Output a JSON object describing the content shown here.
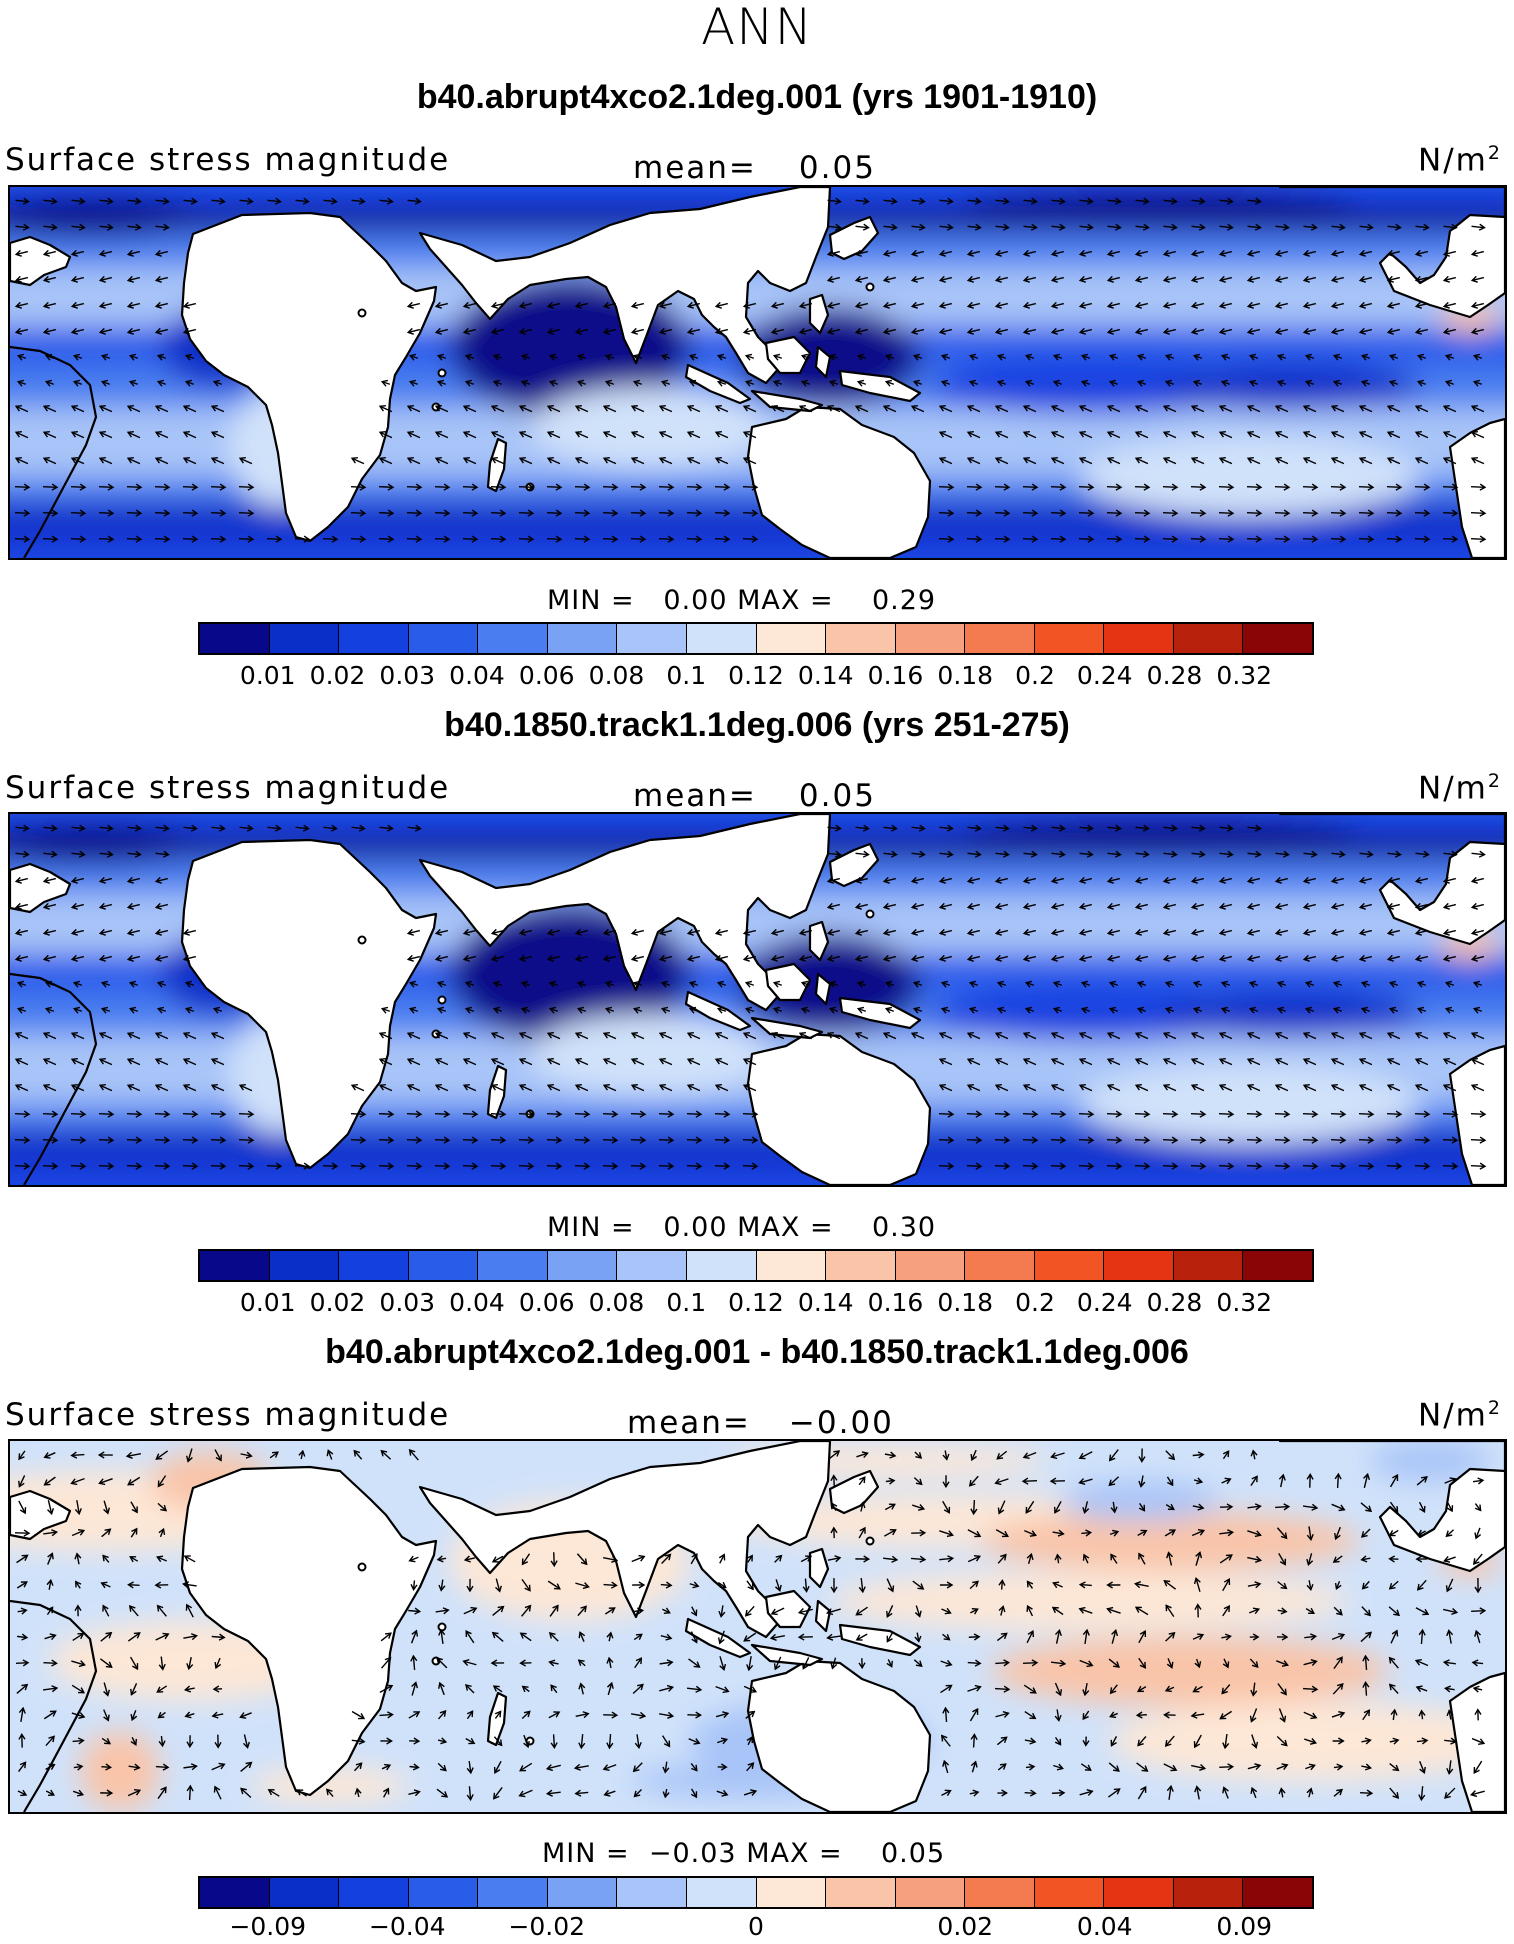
{
  "figure": {
    "season": "ANN",
    "units_base": "N/m",
    "units_exp": "2"
  },
  "panels": [
    {
      "title": "b40.abrupt4xco2.1deg.001 (yrs 1901-1910)",
      "left_label": "Surface stress magnitude",
      "mean_label": "mean=",
      "mean_value": "0.05",
      "min_label": "MIN =",
      "min_value": "0.00",
      "max_label": "MAX =",
      "max_value": "0.29",
      "colorbar_ticks": [
        "0.01",
        "0.02",
        "0.03",
        "0.04",
        "0.06",
        "0.08",
        "0.1",
        "0.12",
        "0.14",
        "0.16",
        "0.18",
        "0.2",
        "0.24",
        "0.28",
        "0.32"
      ],
      "colorbar_colors": [
        "#08088a",
        "#0a2ec8",
        "#1440e0",
        "#2a5cea",
        "#4a7ef0",
        "#7aa2f4",
        "#a8c4f8",
        "#d0e2fa",
        "#fde7d6",
        "#f9c4a8",
        "#f6a07e",
        "#f47a50",
        "#f25424",
        "#e43414",
        "#b8220c",
        "#8a0606"
      ],
      "palette": "sequential"
    },
    {
      "title": "b40.1850.track1.1deg.006 (yrs 251-275)",
      "left_label": "Surface stress magnitude",
      "mean_label": "mean=",
      "mean_value": "0.05",
      "min_label": "MIN =",
      "min_value": "0.00",
      "max_label": "MAX =",
      "max_value": "0.30",
      "colorbar_ticks": [
        "0.01",
        "0.02",
        "0.03",
        "0.04",
        "0.06",
        "0.08",
        "0.1",
        "0.12",
        "0.14",
        "0.16",
        "0.18",
        "0.2",
        "0.24",
        "0.28",
        "0.32"
      ],
      "colorbar_colors": [
        "#08088a",
        "#0a2ec8",
        "#1440e0",
        "#2a5cea",
        "#4a7ef0",
        "#7aa2f4",
        "#a8c4f8",
        "#d0e2fa",
        "#fde7d6",
        "#f9c4a8",
        "#f6a07e",
        "#f47a50",
        "#f25424",
        "#e43414",
        "#b8220c",
        "#8a0606"
      ],
      "palette": "sequential"
    },
    {
      "title": "b40.abrupt4xco2.1deg.001 - b40.1850.track1.1deg.006",
      "left_label": "Surface stress magnitude",
      "mean_label": "mean=",
      "mean_value": "−0.00",
      "min_label": "MIN =",
      "min_value": "−0.03",
      "max_label": "MAX =",
      "max_value": "0.05",
      "colorbar_ticks": [
        "−0.09",
        "−0.04",
        "−0.02",
        "0",
        "0.02",
        "0.04",
        "0.09"
      ],
      "colorbar_colors": [
        "#08088a",
        "#0a2ec8",
        "#1440e0",
        "#2a5cea",
        "#4a7ef0",
        "#7aa2f4",
        "#a8c4f8",
        "#d0e2fa",
        "#fde7d6",
        "#f9c4a8",
        "#f6a07e",
        "#f47a50",
        "#f25424",
        "#e43414",
        "#b8220c",
        "#8a0606"
      ],
      "palette": "diverging"
    }
  ]
}
